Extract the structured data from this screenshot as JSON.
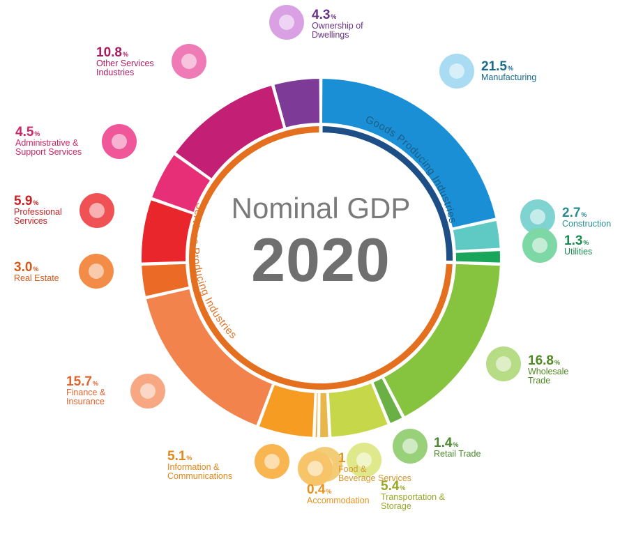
{
  "center": {
    "title": "Nominal GDP",
    "year": "2020"
  },
  "groups": {
    "goods": "Goods Producing Industries",
    "services": "Services Producing Industries"
  },
  "chart_data": {
    "type": "pie",
    "title": "Nominal GDP 2020",
    "unit": "%",
    "slices": [
      {
        "label": "Manufacturing",
        "value": 21.5,
        "group": "goods",
        "color": "#1a8fd6"
      },
      {
        "label": "Construction",
        "value": 2.7,
        "group": "goods",
        "color": "#5fcac3"
      },
      {
        "label": "Utilities",
        "value": 1.3,
        "group": "goods",
        "color": "#1aa65a"
      },
      {
        "label": "Wholesale Trade",
        "value": 16.8,
        "group": "services",
        "color": "#86c440"
      },
      {
        "label": "Retail Trade",
        "value": 1.4,
        "group": "services",
        "color": "#6ab045"
      },
      {
        "label": "Transportation & Storage",
        "value": 5.4,
        "group": "services",
        "color": "#c6d84a"
      },
      {
        "label": "Food & Beverage Services",
        "value": 1.0,
        "group": "services",
        "color": "#e9b64a"
      },
      {
        "label": "Accommodation",
        "value": 0.4,
        "group": "services",
        "color": "#f3a12b"
      },
      {
        "label": "Information & Communications",
        "value": 5.1,
        "group": "services",
        "color": "#f69c23"
      },
      {
        "label": "Finance & Insurance",
        "value": 15.7,
        "group": "services",
        "color": "#f2834c"
      },
      {
        "label": "Real Estate",
        "value": 3.0,
        "group": "services",
        "color": "#ea6a26"
      },
      {
        "label": "Professional Services",
        "value": 5.9,
        "group": "services",
        "color": "#e8262c"
      },
      {
        "label": "Administrative & Support Services",
        "value": 4.5,
        "group": "services",
        "color": "#e62f77"
      },
      {
        "label": "Other Services Industries",
        "value": 10.8,
        "group": "services",
        "color": "#c31f74"
      },
      {
        "label": "Ownership of Dwellings",
        "value": 4.3,
        "group": "services",
        "color": "#7d3b97"
      }
    ]
  },
  "labels": [
    {
      "id": "manufacturing",
      "value": "21.5",
      "pct": "%",
      "lines": [
        "Manufacturing"
      ],
      "color": "#19688e",
      "icon": "factory-icon",
      "iconColor": "#a9dcf2"
    },
    {
      "id": "construction",
      "value": "2.7",
      "pct": "%",
      "lines": [
        "Construction"
      ],
      "color": "#2a8d92",
      "icon": "crane-icon",
      "iconColor": "#7fd3d0"
    },
    {
      "id": "utilities",
      "value": "1.3",
      "pct": "%",
      "lines": [
        "Utilities"
      ],
      "color": "#1b8a4f",
      "icon": "lightbulb-icon",
      "iconColor": "#7dd8a5"
    },
    {
      "id": "wholesale",
      "value": "16.8",
      "pct": "%",
      "lines": [
        "Wholesale",
        "Trade"
      ],
      "color": "#4f8a23",
      "icon": "boxes-icon",
      "iconColor": "#b6dc86"
    },
    {
      "id": "retail",
      "value": "1.4",
      "pct": "%",
      "lines": [
        "Retail Trade"
      ],
      "color": "#4a8a2e",
      "icon": "cart-icon",
      "iconColor": "#98d17a"
    },
    {
      "id": "transport",
      "value": "5.4",
      "pct": "%",
      "lines": [
        "Transportation &",
        "Storage"
      ],
      "color": "#98a826",
      "icon": "truck-icon",
      "iconColor": "#dfe88a"
    },
    {
      "id": "food",
      "value": "1",
      "pct": "",
      "lines": [
        "Food &",
        "Beverage Services"
      ],
      "color": "#d7972a",
      "icon": "food-icon",
      "iconColor": "#f3cc78"
    },
    {
      "id": "accommodation",
      "value": "0.4",
      "pct": "%",
      "lines": [
        "Accommodation"
      ],
      "color": "#e8911e",
      "icon": "bed-icon",
      "iconColor": "#f8c469"
    },
    {
      "id": "infocomm",
      "value": "5.1",
      "pct": "%",
      "lines": [
        "Information &",
        "Communications"
      ],
      "color": "#e48616",
      "icon": "tablet-icon",
      "iconColor": "#f9b550"
    },
    {
      "id": "finance",
      "value": "15.7",
      "pct": "%",
      "lines": [
        "Finance &",
        "Insurance"
      ],
      "color": "#e0642c",
      "icon": "umbrella-dollar-icon",
      "iconColor": "#f7a882"
    },
    {
      "id": "realestate",
      "value": "3.0",
      "pct": "%",
      "lines": [
        "Real Estate"
      ],
      "color": "#d45a1c",
      "icon": "house-icon",
      "iconColor": "#f28c47"
    },
    {
      "id": "professional",
      "value": "5.9",
      "pct": "%",
      "lines": [
        "Professional",
        "Services"
      ],
      "color": "#c62023",
      "icon": "briefcase-icon",
      "iconColor": "#f05155"
    },
    {
      "id": "admin",
      "value": "4.5",
      "pct": "%",
      "lines": [
        "Administrative &",
        "Support Services"
      ],
      "color": "#cf2566",
      "icon": "person-icon",
      "iconColor": "#f0569a"
    },
    {
      "id": "other",
      "value": "10.8",
      "pct": "%",
      "lines": [
        "Other Services",
        "Industries"
      ],
      "color": "#a81b61",
      "icon": "star-icon",
      "iconColor": "#ee7bb5"
    },
    {
      "id": "dwellings",
      "value": "4.3",
      "pct": "%",
      "lines": [
        "Ownership of",
        "Dwellings"
      ],
      "color": "#6a3384",
      "icon": "building-icon",
      "iconColor": "#d9a1e3"
    }
  ]
}
